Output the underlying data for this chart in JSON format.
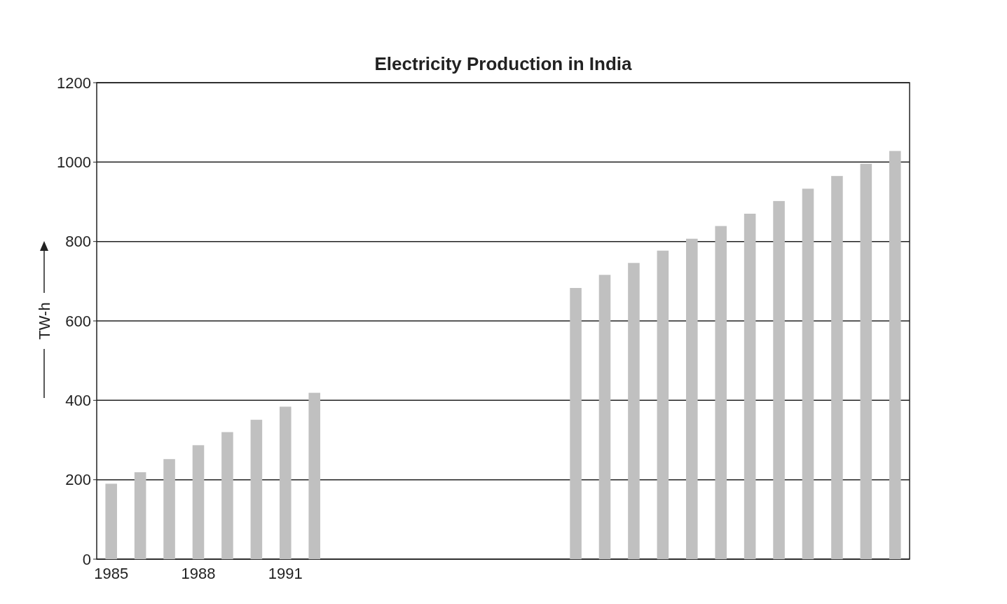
{
  "chart_data": {
    "type": "bar",
    "title": "Electricity Production in India",
    "ylabel": "TW-h",
    "categories": [
      "1985",
      null,
      null,
      "1988",
      null,
      null,
      "1991",
      null,
      null,
      null,
      null,
      null,
      null,
      null,
      null,
      null,
      null,
      null,
      null,
      null,
      null,
      null,
      null,
      null,
      null,
      null,
      null,
      null
    ],
    "values": [
      190,
      219,
      252,
      287,
      320,
      351,
      384,
      419,
      null,
      null,
      null,
      null,
      null,
      null,
      null,
      null,
      683,
      716,
      746,
      777,
      807,
      839,
      870,
      902,
      933,
      965,
      996,
      1028
    ],
    "color": "#c0c0c0",
    "ylim": [
      0,
      1200
    ],
    "yticks": [
      0,
      200,
      400,
      600,
      800,
      1000,
      1200
    ],
    "grid": "y"
  }
}
